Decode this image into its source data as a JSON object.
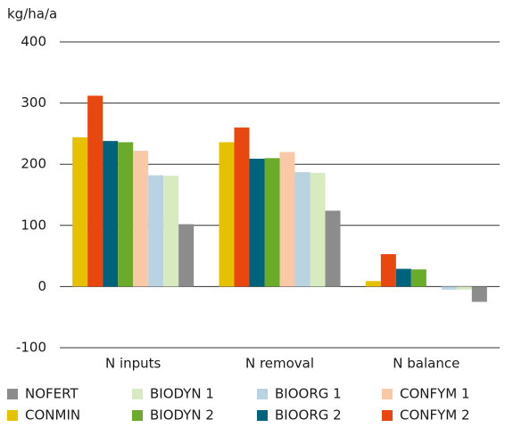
{
  "chart_data": {
    "type": "bar",
    "y_label": "kg/ha/a",
    "categories": [
      "N inputs",
      "N removal",
      "N balance"
    ],
    "series": [
      {
        "name": "CONMIN",
        "color": "#e5c100",
        "values": [
          244,
          236,
          9
        ]
      },
      {
        "name": "CONFYM 2",
        "color": "#e8470f",
        "values": [
          312,
          260,
          53
        ]
      },
      {
        "name": "BIOORG 2",
        "color": "#00637e",
        "values": [
          238,
          209,
          29
        ]
      },
      {
        "name": "BIODYN 2",
        "color": "#6aab2a",
        "values": [
          236,
          210,
          28
        ]
      },
      {
        "name": "CONFYM 1",
        "color": "#f9c8a6",
        "values": [
          222,
          220,
          0
        ]
      },
      {
        "name": "BIOORG 1",
        "color": "#b9d3e1",
        "values": [
          182,
          187,
          -5
        ]
      },
      {
        "name": "BIODYN 1",
        "color": "#d8eac0",
        "values": [
          181,
          186,
          -5
        ]
      },
      {
        "name": "NOFERT",
        "color": "#8c8c8c",
        "values": [
          102,
          124,
          -25
        ]
      }
    ],
    "ylim": [
      -100,
      400
    ],
    "yticks": [
      -100,
      0,
      100,
      200,
      300,
      400
    ],
    "grid": true
  }
}
